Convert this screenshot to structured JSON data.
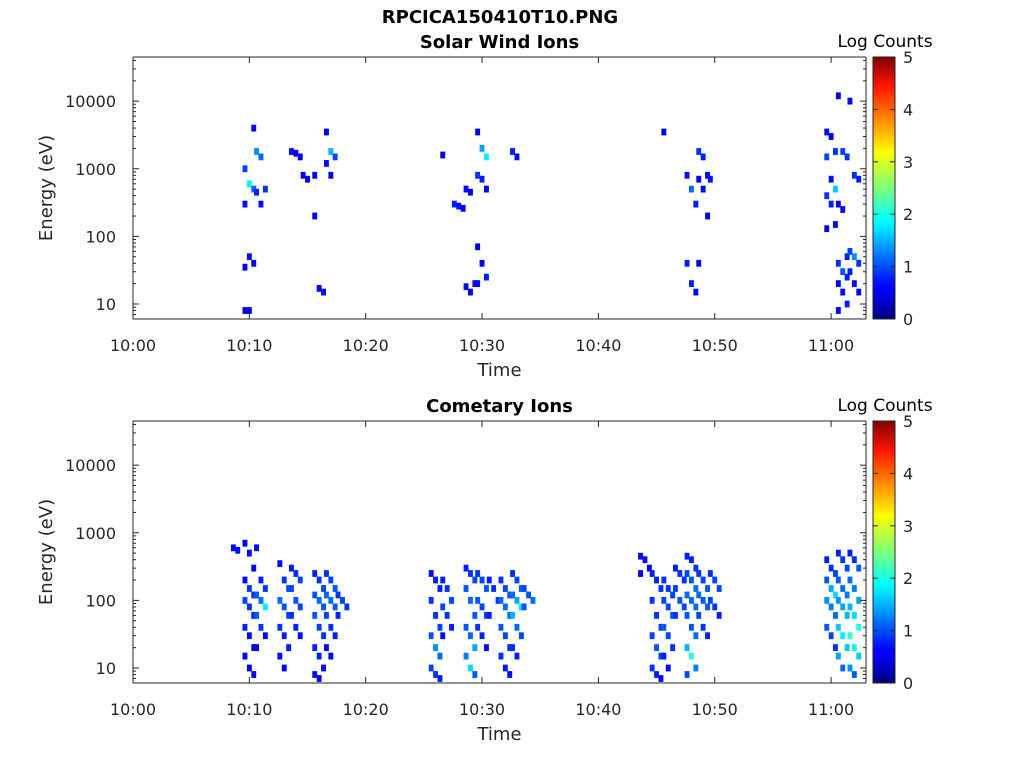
{
  "figure": {
    "title": "RPCICA150410T10.PNG"
  },
  "colorbar": {
    "label": "Log Counts",
    "ticks": [
      "0",
      "1",
      "2",
      "3",
      "4",
      "5"
    ],
    "range": [
      0,
      5
    ],
    "colormap": "jet"
  },
  "chart_data": [
    {
      "type": "heatmap",
      "title": "Solar Wind Ions",
      "xlabel": "Time",
      "ylabel": "Energy (eV)",
      "yscale": "log",
      "xticks": [
        "10:00",
        "10:10",
        "10:20",
        "10:30",
        "10:40",
        "10:50",
        "11:00"
      ],
      "yticks": [
        "10",
        "100",
        "1000",
        "10000"
      ],
      "xlim": [
        "10:00",
        "11:03"
      ],
      "ylim": [
        6,
        45000
      ],
      "bursts": [
        {
          "t": "10:10",
          "e": [
            8,
            8,
            4000,
            1000,
            600,
            500,
            300,
            50,
            40,
            35
          ],
          "level": [
            0.3,
            0.3,
            0.3,
            0.7,
            1.6,
            0.9,
            0.4,
            0.4,
            0.3,
            0.3
          ]
        },
        {
          "t": "10:11",
          "e": [
            1800,
            1500,
            500,
            450,
            300
          ],
          "level": [
            1.1,
            0.9,
            0.6,
            0.5,
            0.4
          ]
        },
        {
          "t": "10:14",
          "e": [
            1800,
            1700,
            1500
          ],
          "level": [
            0.4,
            0.3,
            0.3
          ]
        },
        {
          "t": "10:15",
          "e": [
            800,
            700
          ],
          "level": [
            0.3,
            0.3
          ]
        },
        {
          "t": "10:16",
          "e": [
            800,
            17,
            15,
            200
          ],
          "level": [
            0.3,
            0.4,
            0.4,
            0.3
          ]
        },
        {
          "t": "10:17",
          "e": [
            3500,
            1800,
            1500,
            1200,
            800
          ],
          "level": [
            0.3,
            1.3,
            0.7,
            0.4,
            0.3
          ]
        },
        {
          "t": "10:27",
          "e": [
            1600
          ],
          "level": [
            0.3
          ]
        },
        {
          "t": "10:28",
          "e": [
            300,
            280,
            260
          ],
          "level": [
            0.5,
            0.4,
            0.3
          ]
        },
        {
          "t": "10:29",
          "e": [
            500,
            450,
            20,
            18,
            15
          ],
          "level": [
            0.4,
            0.3,
            0.4,
            0.4,
            0.3
          ]
        },
        {
          "t": "10:30",
          "e": [
            3500,
            2000,
            1500,
            800,
            700,
            500,
            70,
            40,
            25,
            20
          ],
          "level": [
            0.3,
            1.2,
            1.6,
            0.6,
            0.5,
            0.3,
            0.2,
            0.3,
            0.5,
            0.4
          ]
        },
        {
          "t": "10:33",
          "e": [
            1800,
            1500
          ],
          "level": [
            0.5,
            0.4
          ]
        },
        {
          "t": "10:46",
          "e": [
            3500
          ],
          "level": [
            0.3
          ]
        },
        {
          "t": "10:48",
          "e": [
            800,
            500,
            300,
            40,
            20,
            15
          ],
          "level": [
            0.4,
            0.9,
            0.5,
            0.5,
            0.5,
            0.4
          ]
        },
        {
          "t": "10:49",
          "e": [
            1800,
            1500,
            800,
            700,
            500,
            200,
            40
          ],
          "level": [
            0.6,
            0.5,
            0.4,
            0.3,
            0.3,
            0.3,
            0.3
          ]
        },
        {
          "t": "10:50",
          "e": [
            700
          ],
          "level": [
            0.4
          ]
        },
        {
          "t": "11:00",
          "e": [
            3500,
            3000,
            1800,
            1500,
            700,
            500,
            400,
            300,
            150,
            130
          ],
          "level": [
            0.4,
            0.3,
            0.6,
            0.7,
            0.4,
            1.4,
            0.6,
            0.5,
            0.4,
            0.3
          ]
        },
        {
          "t": "11:01",
          "e": [
            12000,
            1800,
            1500,
            300,
            250,
            50,
            40,
            30,
            25,
            20,
            15,
            10,
            8
          ],
          "level": [
            0.3,
            0.7,
            0.6,
            0.4,
            0.4,
            0.5,
            0.6,
            0.8,
            0.5,
            0.4,
            0.4,
            0.5,
            0.4
          ]
        },
        {
          "t": "11:02",
          "e": [
            10000,
            800,
            700,
            60,
            50,
            40,
            30,
            20,
            15
          ],
          "level": [
            0.3,
            0.6,
            0.5,
            0.7,
            1.1,
            0.6,
            0.5,
            0.4,
            0.4
          ]
        }
      ]
    },
    {
      "type": "heatmap",
      "title": "Cometary Ions",
      "xlabel": "Time",
      "ylabel": "Energy (eV)",
      "yscale": "log",
      "xticks": [
        "10:00",
        "10:10",
        "10:20",
        "10:30",
        "10:40",
        "10:50",
        "11:00"
      ],
      "yticks": [
        "10",
        "100",
        "1000",
        "10000"
      ],
      "xlim": [
        "10:00",
        "11:03"
      ],
      "ylim": [
        6,
        45000
      ],
      "bursts": [
        {
          "t": "10:09",
          "e": [
            600,
            550
          ],
          "level": [
            0.4,
            0.4
          ]
        },
        {
          "t": "10:10",
          "e": [
            700,
            500,
            300,
            200,
            150,
            120,
            100,
            80,
            60,
            40,
            30,
            20,
            15,
            10,
            8
          ],
          "level": [
            0.3,
            0.4,
            0.3,
            0.4,
            0.6,
            0.6,
            0.7,
            0.6,
            0.5,
            0.5,
            0.4,
            0.4,
            0.3,
            0.3,
            0.3
          ]
        },
        {
          "t": "10:11",
          "e": [
            600,
            200,
            150,
            120,
            100,
            80,
            60,
            40,
            30,
            20
          ],
          "level": [
            0.4,
            0.5,
            0.6,
            0.8,
            0.9,
            1.6,
            0.8,
            0.6,
            0.4,
            0.3
          ]
        },
        {
          "t": "10:13",
          "e": [
            350,
            200,
            150,
            100,
            80,
            60,
            40,
            30,
            20,
            15,
            10
          ],
          "level": [
            0.4,
            0.6,
            0.7,
            0.9,
            0.8,
            0.7,
            0.6,
            0.5,
            0.5,
            0.4,
            0.3
          ]
        },
        {
          "t": "10:14",
          "e": [
            300,
            250,
            200,
            150,
            100,
            80,
            60,
            40,
            30
          ],
          "level": [
            0.5,
            0.6,
            0.7,
            0.7,
            0.8,
            0.7,
            0.6,
            0.5,
            0.4
          ]
        },
        {
          "t": "10:16",
          "e": [
            250,
            200,
            150,
            120,
            100,
            80,
            60,
            40,
            30,
            20,
            15,
            10,
            8,
            7
          ],
          "level": [
            0.5,
            0.6,
            0.7,
            0.8,
            0.9,
            0.8,
            0.8,
            0.7,
            0.6,
            0.5,
            0.5,
            0.4,
            0.4,
            0.3
          ]
        },
        {
          "t": "10:17",
          "e": [
            250,
            200,
            150,
            120,
            100,
            80,
            60,
            40,
            30,
            20,
            15
          ],
          "level": [
            0.6,
            0.7,
            0.8,
            0.9,
            0.9,
            0.8,
            0.7,
            0.6,
            0.5,
            0.4,
            0.3
          ]
        },
        {
          "t": "10:18",
          "e": [
            120,
            100,
            80,
            60
          ],
          "level": [
            0.6,
            0.7,
            0.6,
            0.5
          ]
        },
        {
          "t": "10:26",
          "e": [
            250,
            200,
            150,
            100,
            60,
            40,
            30,
            20,
            15,
            10,
            8,
            7
          ],
          "level": [
            0.4,
            0.5,
            0.5,
            0.6,
            0.6,
            0.7,
            0.8,
            1.1,
            0.9,
            0.7,
            0.6,
            0.5
          ]
        },
        {
          "t": "10:27",
          "e": [
            200,
            150,
            100,
            80,
            60,
            40,
            30
          ],
          "level": [
            0.5,
            0.6,
            0.7,
            0.7,
            0.6,
            0.5,
            0.4
          ]
        },
        {
          "t": "10:29",
          "e": [
            300,
            250,
            200,
            150,
            100,
            60,
            40,
            30,
            20,
            15,
            10,
            8
          ],
          "level": [
            0.5,
            0.6,
            0.7,
            0.8,
            0.9,
            0.8,
            0.8,
            0.9,
            1.2,
            1.0,
            1.5,
            0.8
          ]
        },
        {
          "t": "10:30",
          "e": [
            250,
            200,
            150,
            100,
            80,
            60,
            40,
            30,
            20
          ],
          "level": [
            0.6,
            0.7,
            0.8,
            0.8,
            0.7,
            0.7,
            0.6,
            0.5,
            0.4
          ]
        },
        {
          "t": "10:31",
          "e": [
            200,
            150,
            100,
            60
          ],
          "level": [
            0.5,
            0.6,
            0.6,
            0.5
          ]
        },
        {
          "t": "10:32",
          "e": [
            200,
            150,
            120,
            100,
            80,
            60,
            40,
            30,
            20,
            15,
            10,
            8
          ],
          "level": [
            0.6,
            0.7,
            0.8,
            0.9,
            0.9,
            0.9,
            0.8,
            0.7,
            0.6,
            0.6,
            0.5,
            0.4
          ]
        },
        {
          "t": "10:33",
          "e": [
            250,
            200,
            150,
            120,
            100,
            80,
            60,
            40,
            30,
            20,
            15
          ],
          "level": [
            0.6,
            0.7,
            0.8,
            0.9,
            1.2,
            1.5,
            1.3,
            0.9,
            0.7,
            0.6,
            0.5
          ]
        },
        {
          "t": "10:34",
          "e": [
            150,
            120,
            100,
            80
          ],
          "level": [
            0.7,
            0.8,
            0.9,
            0.8
          ]
        },
        {
          "t": "10:44",
          "e": [
            450,
            400,
            300,
            250
          ],
          "level": [
            0.4,
            0.4,
            0.3,
            0.3
          ]
        },
        {
          "t": "10:45",
          "e": [
            250,
            200,
            150,
            100,
            60,
            40,
            30,
            20,
            15,
            10,
            8,
            7
          ],
          "level": [
            0.5,
            0.5,
            0.6,
            0.6,
            0.6,
            0.7,
            0.7,
            0.8,
            0.7,
            0.6,
            0.5,
            0.4
          ]
        },
        {
          "t": "10:46",
          "e": [
            200,
            150,
            120,
            100,
            80,
            60,
            40,
            30,
            20,
            15,
            10
          ],
          "level": [
            0.6,
            0.6,
            0.7,
            0.7,
            0.7,
            0.8,
            0.8,
            0.7,
            0.6,
            0.5,
            0.4
          ]
        },
        {
          "t": "10:47",
          "e": [
            300,
            250,
            200,
            150,
            100,
            80,
            60
          ],
          "level": [
            0.5,
            0.6,
            0.6,
            0.7,
            0.8,
            0.7,
            0.6
          ]
        },
        {
          "t": "10:48",
          "e": [
            450,
            400,
            300,
            250,
            200,
            150,
            120,
            100,
            80,
            60,
            40,
            30,
            20,
            15,
            10,
            8
          ],
          "level": [
            0.5,
            0.5,
            0.6,
            0.7,
            0.8,
            0.9,
            0.9,
            0.9,
            0.9,
            0.8,
            0.8,
            0.9,
            1.3,
            1.9,
            1.0,
            0.7
          ]
        },
        {
          "t": "10:49",
          "e": [
            250,
            200,
            150,
            120,
            100,
            80,
            60,
            40,
            30
          ],
          "level": [
            0.6,
            0.7,
            0.8,
            0.9,
            0.8,
            0.8,
            0.7,
            0.6,
            0.5
          ]
        },
        {
          "t": "10:50",
          "e": [
            250,
            200,
            150,
            100,
            80,
            60
          ],
          "level": [
            0.6,
            0.7,
            0.7,
            0.7,
            0.6,
            0.5
          ]
        },
        {
          "t": "11:00",
          "e": [
            400,
            300,
            250,
            200,
            150,
            120,
            100,
            80,
            60,
            40,
            30,
            20
          ],
          "level": [
            0.5,
            0.6,
            0.7,
            0.8,
            1.2,
            1.5,
            1.1,
            1.0,
            0.9,
            0.8,
            0.7,
            0.6
          ]
        },
        {
          "t": "11:01",
          "e": [
            500,
            400,
            300,
            200,
            150,
            120,
            100,
            80,
            60,
            40,
            30,
            20,
            15,
            10
          ],
          "level": [
            0.5,
            0.6,
            0.7,
            0.8,
            0.9,
            1.0,
            1.1,
            1.2,
            1.3,
            1.4,
            1.6,
            1.4,
            1.2,
            0.9
          ]
        },
        {
          "t": "11:02",
          "e": [
            500,
            400,
            300,
            200,
            150,
            100,
            80,
            60,
            40,
            30,
            20,
            15,
            10,
            8
          ],
          "level": [
            0.5,
            0.6,
            0.8,
            0.9,
            1.0,
            1.2,
            1.3,
            1.5,
            1.8,
            1.9,
            1.7,
            1.4,
            1.1,
            0.8
          ]
        }
      ]
    }
  ]
}
